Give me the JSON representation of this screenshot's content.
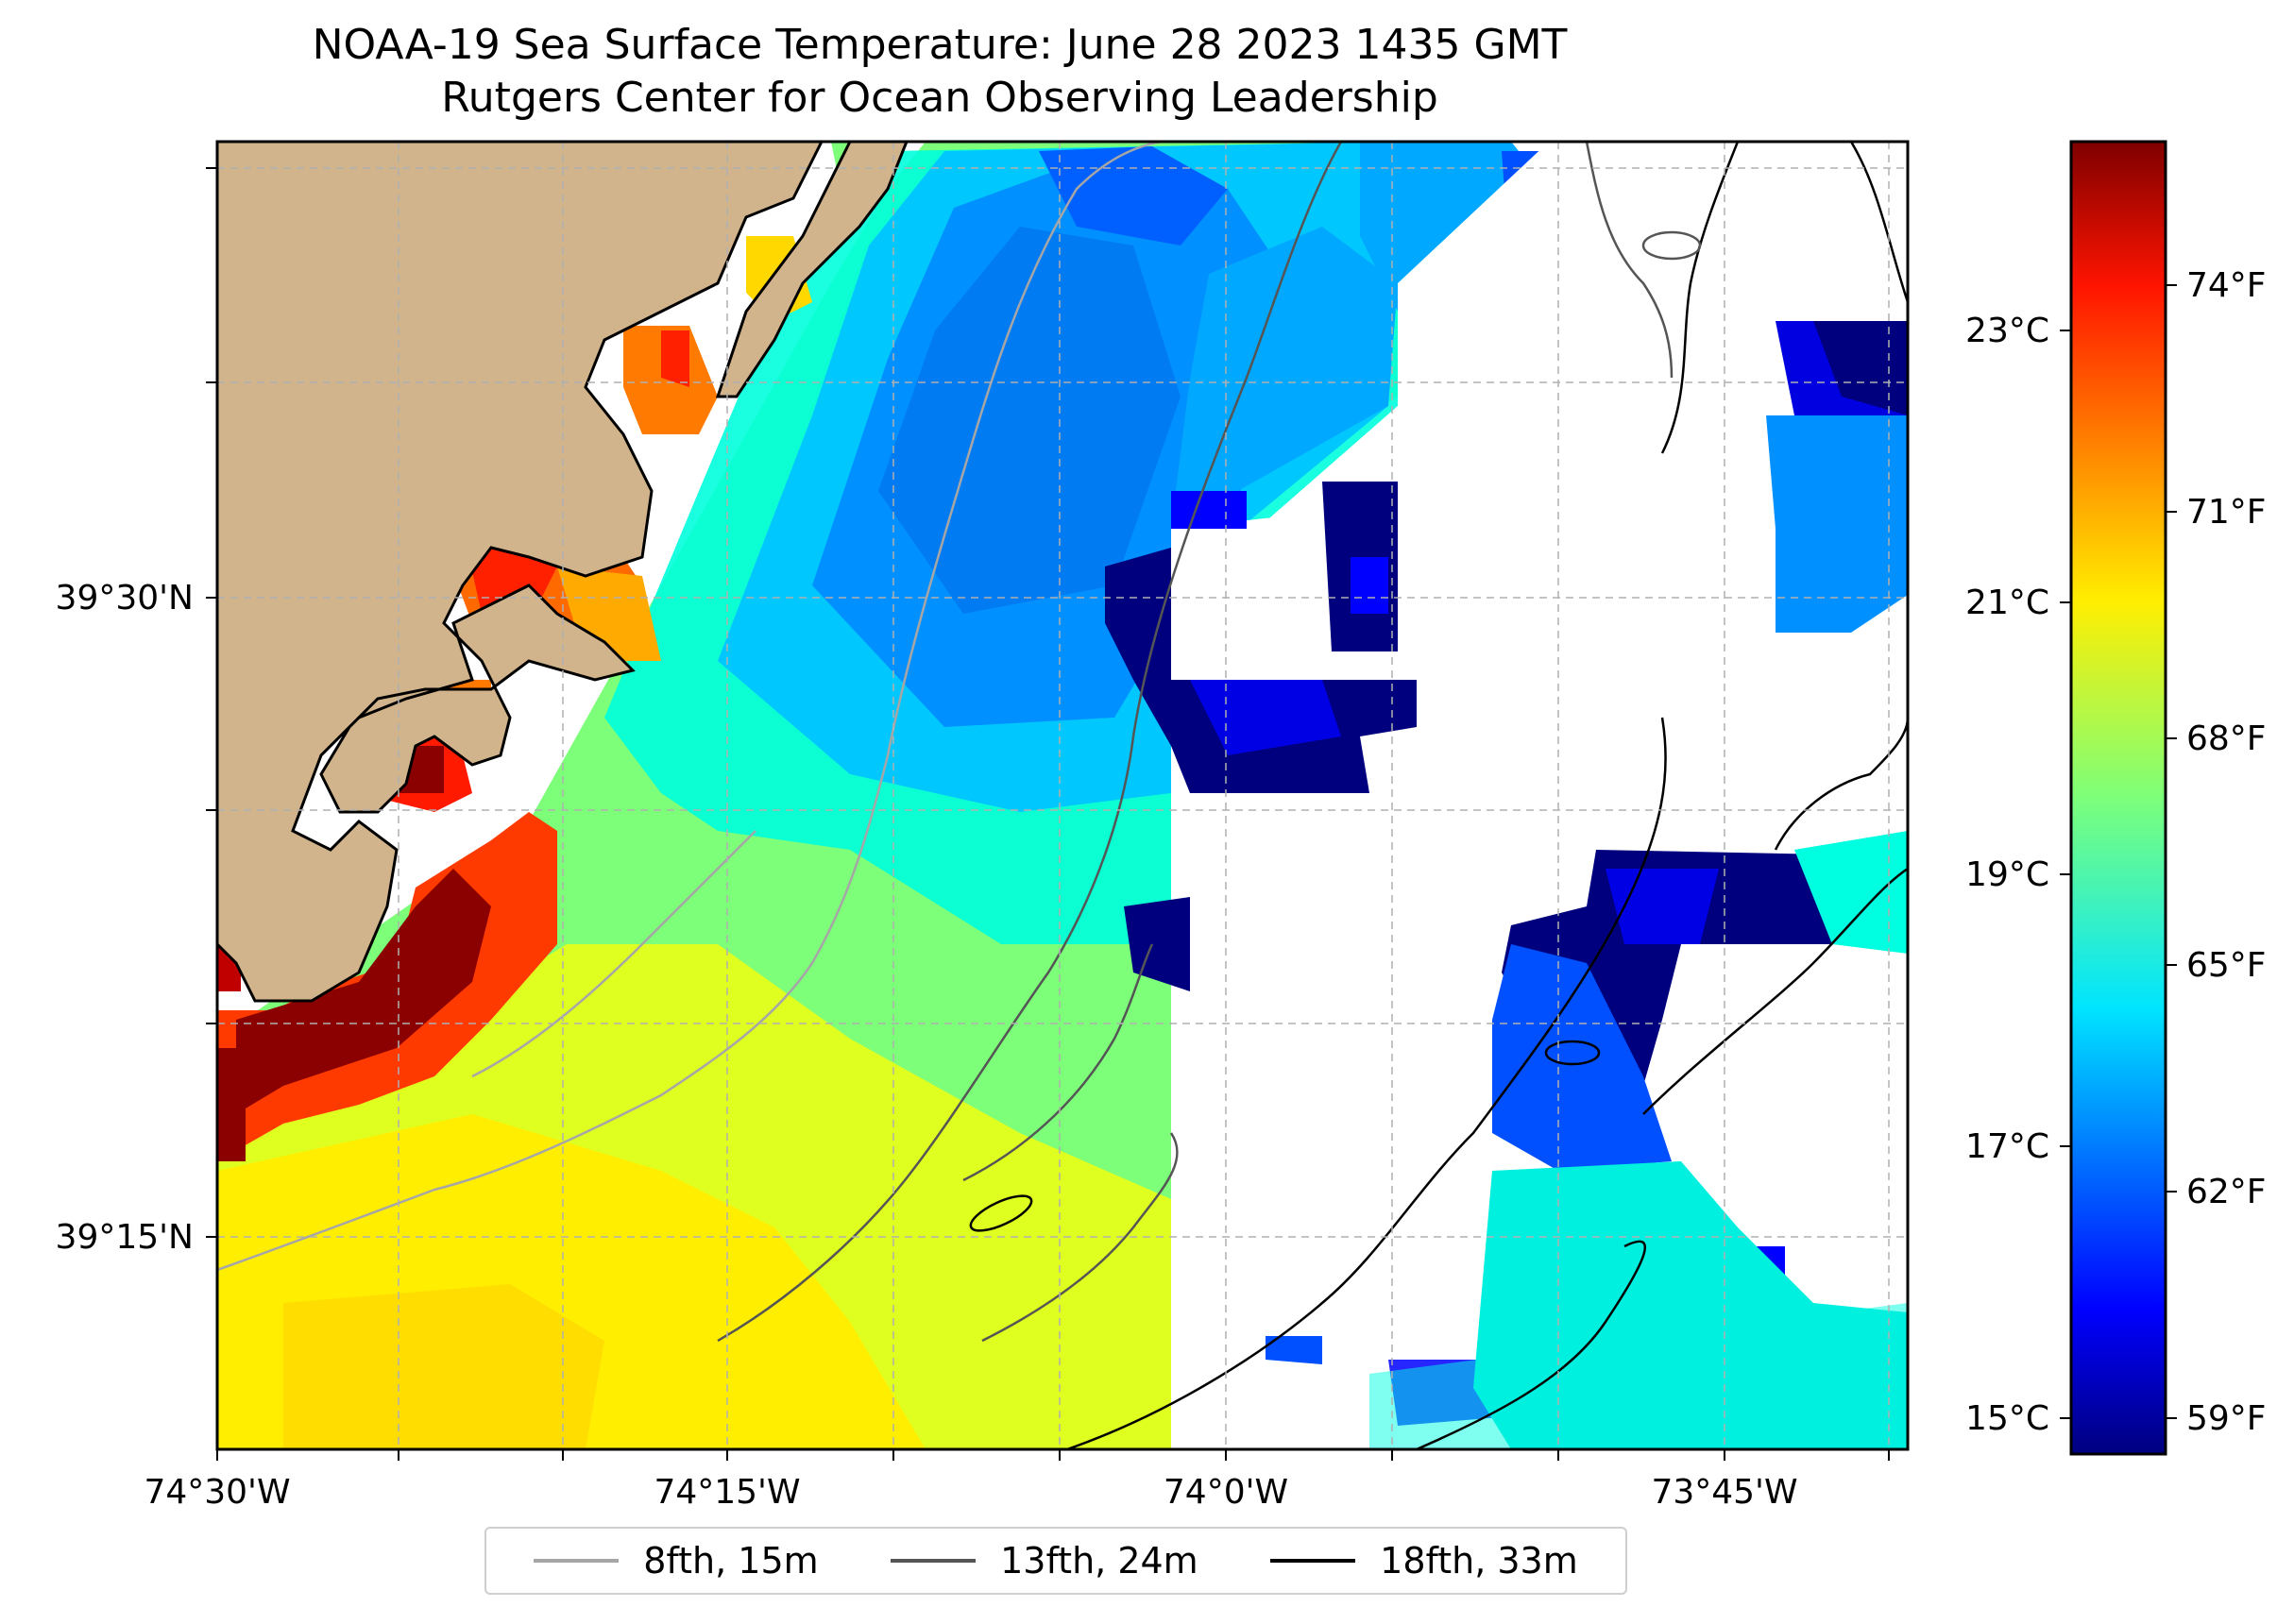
{
  "title": {
    "line1": "NOAA-19 Sea Surface Temperature: June 28 2023 1435 GMT",
    "line2": "Rutgers Center for Ocean Observing Leadership"
  },
  "axes": {
    "x_ticks": [
      "74°30'W",
      "74°15'W",
      "74°0'W",
      "73°45'W"
    ],
    "y_ticks": [
      "39°30'N",
      "39°15'N"
    ]
  },
  "colorbar": {
    "celsius_ticks": [
      "23°C",
      "21°C",
      "19°C",
      "17°C",
      "15°C"
    ],
    "fahrenheit_ticks": [
      "74°F",
      "71°F",
      "68°F",
      "65°F",
      "62°F",
      "59°F"
    ]
  },
  "legend": [
    {
      "label": "8fth, 15m",
      "color": "#a6a6a6"
    },
    {
      "label": "13fth, 24m",
      "color": "#555555"
    },
    {
      "label": "18fth, 33m",
      "color": "#000000"
    }
  ],
  "colors": {
    "land": "#d2b48c",
    "no_data": "#ffffff",
    "colormap": "jet"
  }
}
